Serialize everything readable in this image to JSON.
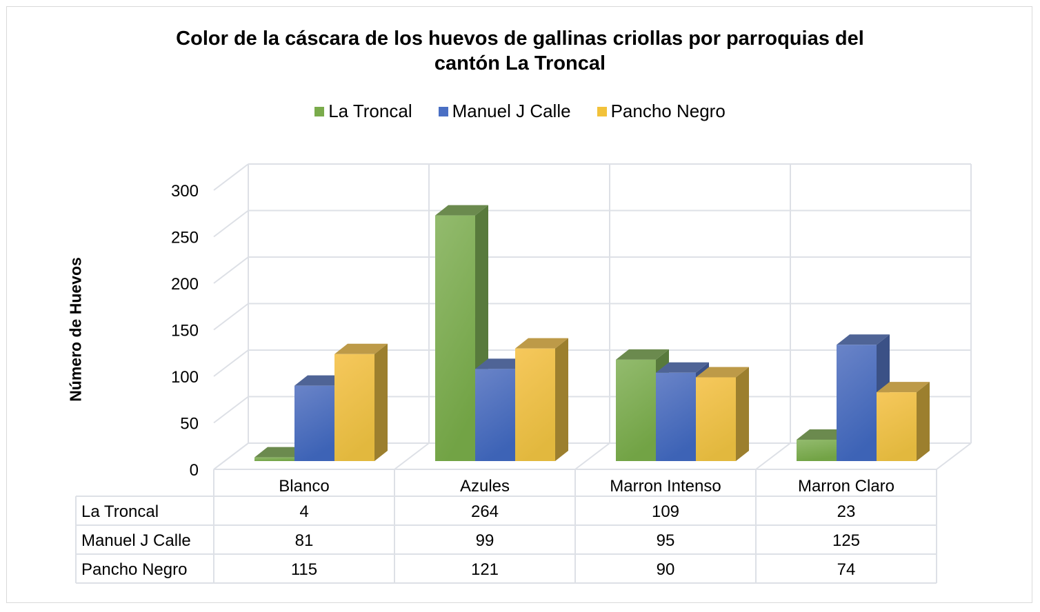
{
  "chart_data": {
    "type": "bar",
    "subtype": "3d-clustered-column-with-data-table",
    "title": "Color de la cáscara de los huevos de gallinas criollas por parroquias del cantón La Troncal",
    "title_lines": [
      "Color de la cáscara de los huevos de gallinas criollas por parroquias del",
      "cantón La Troncal"
    ],
    "xlabel": "",
    "ylabel": "Número de Huevos",
    "ylim": [
      0,
      300
    ],
    "yticks": [
      0,
      50,
      100,
      150,
      200,
      250,
      300
    ],
    "grid": true,
    "legend_position": "top",
    "categories": [
      "Blanco",
      "Azules",
      "Marron Intenso",
      "Marron Claro"
    ],
    "series": [
      {
        "name": "La Troncal",
        "color": "#7aab4b",
        "values": [
          4,
          264,
          109,
          23
        ]
      },
      {
        "name": "Manuel J Calle",
        "color": "#4a6fc4",
        "values": [
          81,
          99,
          95,
          125
        ]
      },
      {
        "name": "Pancho Negro",
        "color": "#f2c23a",
        "values": [
          115,
          121,
          90,
          74
        ]
      }
    ]
  },
  "legend": {
    "items": [
      {
        "label": "La Troncal",
        "color": "#7aab4b"
      },
      {
        "label": "Manuel J Calle",
        "color": "#4a6fc4"
      },
      {
        "label": "Pancho Negro",
        "color": "#f2c23a"
      }
    ]
  }
}
